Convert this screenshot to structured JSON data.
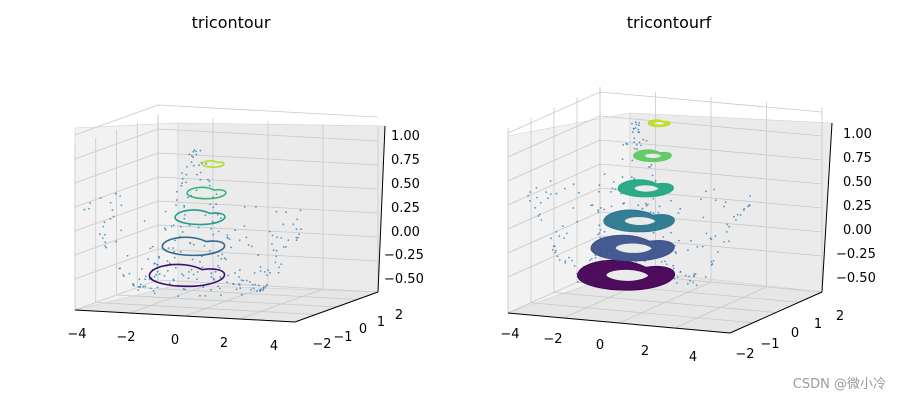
{
  "chart_data": [
    {
      "type": "contour3d",
      "title": "tricontour",
      "xticks": [
        "−4",
        "−2",
        "0",
        "2",
        "4"
      ],
      "yticks": [
        "−2",
        "−1",
        "0",
        "1",
        "2"
      ],
      "zticks": [
        "1.00",
        "0.75",
        "0.50",
        "0.25",
        "0.00",
        "−0.25",
        "−0.50"
      ],
      "xlim": [
        -4,
        4
      ],
      "ylim": [
        -2,
        2
      ],
      "zlim": [
        -0.65,
        1.05
      ],
      "contour_levels": [
        -0.4,
        -0.1,
        0.2,
        0.45,
        0.75
      ],
      "level_colors": [
        "#3b0f70",
        "#30698e",
        "#1f9e89",
        "#35b779",
        "#b5de2b"
      ],
      "scatter_color": "#1f77b4"
    },
    {
      "type": "filled-contour3d",
      "title": "tricontourf",
      "xticks": [
        "−4",
        "−2",
        "0",
        "2",
        "4"
      ],
      "yticks": [
        "−2",
        "−1",
        "0",
        "1",
        "2"
      ],
      "zticks": [
        "1.00",
        "0.75",
        "0.50",
        "0.25",
        "0.00",
        "−0.25",
        "−0.50"
      ],
      "xlim": [
        -4,
        4
      ],
      "ylim": [
        -2,
        2
      ],
      "zlim": [
        -0.65,
        1.05
      ],
      "contour_levels": [
        -0.5,
        -0.25,
        0.0,
        0.3,
        0.6,
        0.9
      ],
      "level_colors": [
        "#440154",
        "#3b528b",
        "#2a788e",
        "#22a884",
        "#5ec962",
        "#bddf26"
      ],
      "scatter_color": "#1f77b4"
    }
  ],
  "watermark": "CSDN @微小冷"
}
